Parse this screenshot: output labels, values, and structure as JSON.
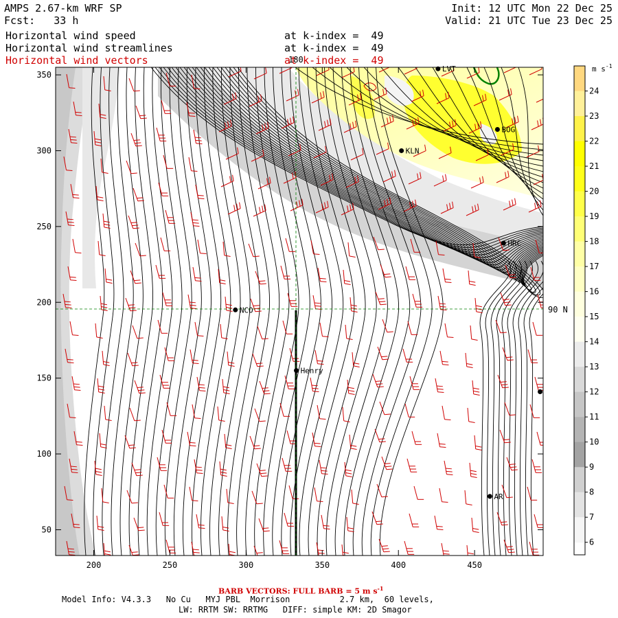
{
  "header": {
    "model_title": "AMPS 2.67-km WRF SP",
    "forecast": "Fcst:   33 h",
    "init": "Init: 12 UTC Mon 22 Dec 25",
    "valid": "Valid: 21 UTC Tue 23 Dec 25",
    "layers": [
      {
        "name": "Horizontal wind speed",
        "level": "at k-index =  49",
        "color": "#000000"
      },
      {
        "name": "Horizontal wind streamlines",
        "level": "at k-index =  49",
        "color": "#000000"
      },
      {
        "name": "Horizontal wind vectors",
        "level": "at k-index =  49",
        "color": "#d00000"
      }
    ]
  },
  "map": {
    "x_ticks": [
      "200",
      "250",
      "300",
      "350",
      "400",
      "450"
    ],
    "y_ticks": [
      "350",
      "300",
      "250",
      "200",
      "150",
      "100",
      "50"
    ],
    "xlim": [
      175,
      495
    ],
    "ylim": [
      33,
      355
    ],
    "graticule": {
      "lon_label": "180",
      "lat_label": "90 N"
    },
    "stations": [
      {
        "label": "LVT",
        "x": 426,
        "y": 354
      },
      {
        "label": "BOG",
        "x": 465,
        "y": 314
      },
      {
        "label": "KLN",
        "x": 402,
        "y": 300
      },
      {
        "label": "HRC",
        "x": 469,
        "y": 239
      },
      {
        "label": "NCO",
        "x": 293,
        "y": 195
      },
      {
        "label": "Henry",
        "x": 333,
        "y": 155
      },
      {
        "label": "AR",
        "x": 460,
        "y": 72
      },
      {
        "label": "",
        "x": 493,
        "y": 141
      }
    ]
  },
  "colorbar": {
    "units": "m s",
    "units_exp": "-1",
    "levels": [
      "24",
      "23",
      "22",
      "21",
      "20",
      "19",
      "18",
      "17",
      "16",
      "15",
      "14",
      "13",
      "12",
      "11",
      "10",
      "9",
      "8",
      "7",
      "6"
    ],
    "colors": [
      "#ffd880",
      "#fff09a",
      "#fff24a",
      "#ffff00",
      "#ffff1a",
      "#ffff4a",
      "#ffff76",
      "#ffffa6",
      "#ffffc4",
      "#ffffdf",
      "#fffff0",
      "#ececec",
      "#d9d9d9",
      "#c6c6c6",
      "#b4b4b4",
      "#a3a3a3",
      "#d0d0d0",
      "#e3e3e3",
      "#f5f5f5"
    ]
  },
  "footer": {
    "barb_note": "BARB VECTORS:  FULL BARB = 5 m s",
    "barb_exp": "-1",
    "model_info": "Model Info: V4.3.3   No Cu   MYJ PBL  Morrison          2.7 km,  60 levels,",
    "physics": "LW: RRTM SW: RRTMG   DIFF: simple KM: 2D Smagor"
  }
}
